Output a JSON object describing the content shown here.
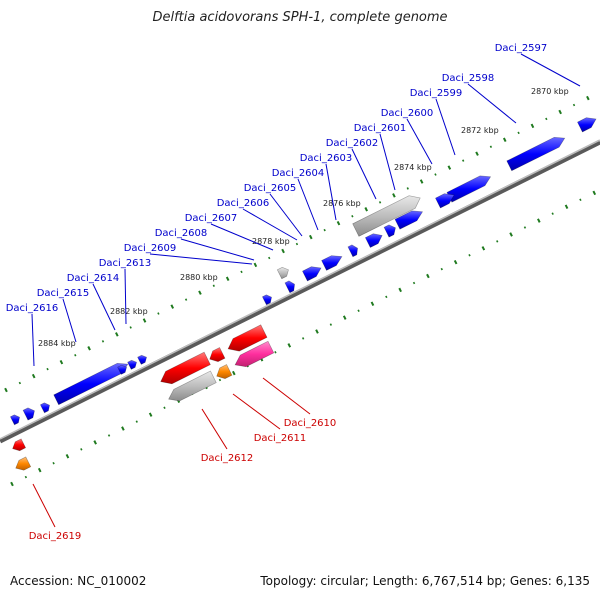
{
  "title": "Delftia acidovorans SPH-1, complete genome",
  "footer": {
    "accession": "Accession: NC_010002",
    "topology": "Topology: circular; Length: 6,767,514 bp; Genes: 6,135"
  },
  "colors": {
    "forward_gene": "#0000ff",
    "reverse_gene": "#ff0000",
    "pseudo_gene": "#b0b0b0",
    "trna_gene": "#ff8800",
    "other_gene": "#ff2f9e",
    "backbone": "#888888",
    "tick_minor": "#228822"
  },
  "ticks": [
    {
      "label": "2870 kbp"
    },
    {
      "label": "2872 kbp"
    },
    {
      "label": "2874 kbp"
    },
    {
      "label": "2876 kbp"
    },
    {
      "label": "2878 kbp"
    },
    {
      "label": "2880 kbp"
    },
    {
      "label": "2882 kbp"
    },
    {
      "label": "2884 kbp"
    }
  ],
  "forward_labels": [
    "Daci_2597",
    "Daci_2598",
    "Daci_2599",
    "Daci_2600",
    "Daci_2601",
    "Daci_2602",
    "Daci_2603",
    "Daci_2604",
    "Daci_2605",
    "Daci_2606",
    "Daci_2607",
    "Daci_2608",
    "Daci_2609",
    "Daci_2613",
    "Daci_2614",
    "Daci_2615",
    "Daci_2616"
  ],
  "reverse_labels": [
    "Daci_2610",
    "Daci_2611",
    "Daci_2612",
    "Daci_2619"
  ]
}
